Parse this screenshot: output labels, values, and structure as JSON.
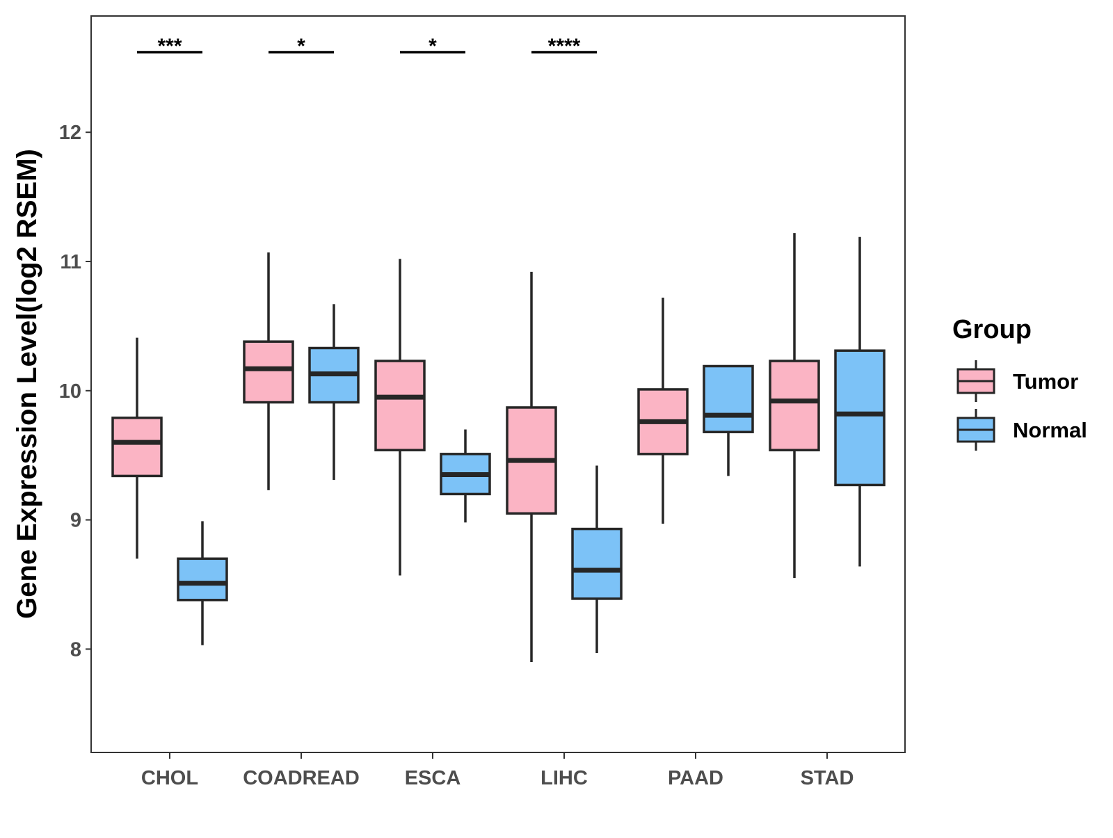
{
  "chart_data": {
    "type": "boxplot",
    "title": "",
    "xlabel": "",
    "ylabel": "Gene Expression Level(log2 RSEM)",
    "ylim": [
      7.2,
      12.9
    ],
    "yticks": [
      8,
      9,
      10,
      11,
      12
    ],
    "categories": [
      "CHOL",
      "COADREAD",
      "ESCA",
      "LIHC",
      "PAAD",
      "STAD"
    ],
    "grid": false,
    "legend": {
      "title": "Group",
      "position": "right"
    },
    "series": [
      {
        "name": "Tumor",
        "color": "#fbb4c4",
        "boxes": [
          {
            "whisker_low": 8.7,
            "q1": 9.34,
            "median": 9.6,
            "q3": 9.79,
            "whisker_high": 10.41
          },
          {
            "whisker_low": 9.23,
            "q1": 9.91,
            "median": 10.17,
            "q3": 10.38,
            "whisker_high": 11.07
          },
          {
            "whisker_low": 8.57,
            "q1": 9.54,
            "median": 9.95,
            "q3": 10.23,
            "whisker_high": 11.02
          },
          {
            "whisker_low": 7.9,
            "q1": 9.05,
            "median": 9.46,
            "q3": 9.87,
            "whisker_high": 10.92
          },
          {
            "whisker_low": 8.97,
            "q1": 9.51,
            "median": 9.76,
            "q3": 10.01,
            "whisker_high": 10.72
          },
          {
            "whisker_low": 8.55,
            "q1": 9.54,
            "median": 9.92,
            "q3": 10.23,
            "whisker_high": 11.22
          }
        ]
      },
      {
        "name": "Normal",
        "color": "#7cc2f7",
        "boxes": [
          {
            "whisker_low": 8.03,
            "q1": 8.38,
            "median": 8.51,
            "q3": 8.7,
            "whisker_high": 8.99
          },
          {
            "whisker_low": 9.31,
            "q1": 9.91,
            "median": 10.13,
            "q3": 10.33,
            "whisker_high": 10.67
          },
          {
            "whisker_low": 8.98,
            "q1": 9.2,
            "median": 9.35,
            "q3": 9.51,
            "whisker_high": 9.7
          },
          {
            "whisker_low": 7.97,
            "q1": 8.39,
            "median": 8.61,
            "q3": 8.93,
            "whisker_high": 9.42
          },
          {
            "whisker_low": 9.34,
            "q1": 9.68,
            "median": 9.81,
            "q3": 10.19,
            "whisker_high": 10.19
          },
          {
            "whisker_low": 8.64,
            "q1": 9.27,
            "median": 9.82,
            "q3": 10.31,
            "whisker_high": 11.19
          }
        ]
      }
    ],
    "significance": [
      {
        "category": "CHOL",
        "label": "***"
      },
      {
        "category": "COADREAD",
        "label": "*"
      },
      {
        "category": "ESCA",
        "label": "*"
      },
      {
        "category": "LIHC",
        "label": "****"
      }
    ]
  }
}
